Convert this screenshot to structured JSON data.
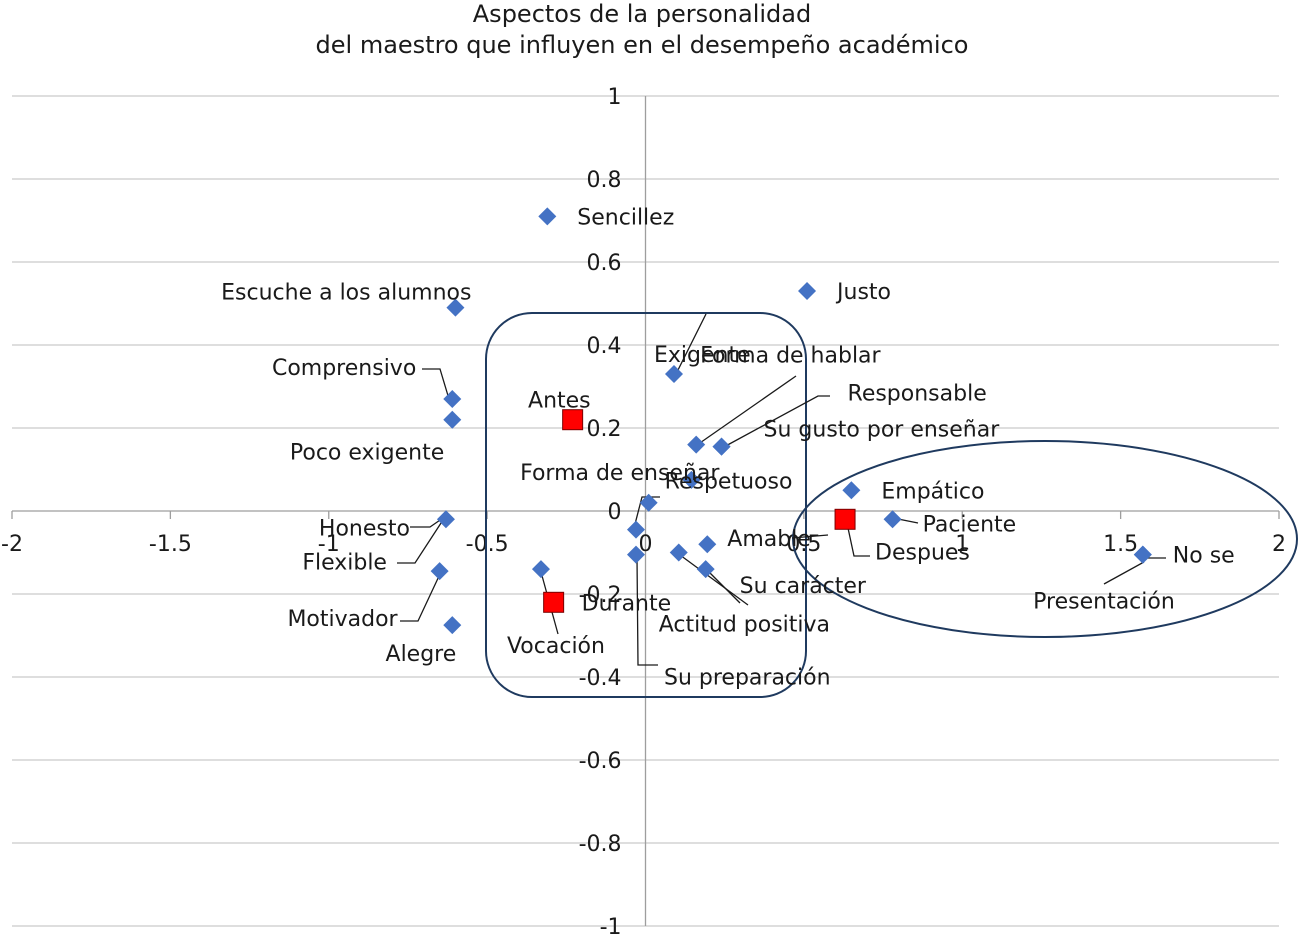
{
  "chart_data": {
    "type": "scatter",
    "title": [
      "Aspectos de la personalidad",
      "del maestro que influyen en el desempeño académico"
    ],
    "xlim": [
      -2,
      2
    ],
    "ylim": [
      -1,
      1
    ],
    "x_ticks": [
      "-2",
      "-1.5",
      "-1",
      "-0.5",
      "0",
      "0.5",
      "1",
      "1.5",
      "2"
    ],
    "y_ticks": [
      "1",
      "0.8",
      "0.6",
      "0.4",
      "0.2",
      "0",
      "-0.2",
      "-0.4",
      "-0.6",
      "-0.8",
      "-1"
    ],
    "grid": true,
    "legend": "none",
    "series": [
      {
        "marker": "diamond",
        "color": "#4472c4",
        "points": [
          {
            "label": "Sencillez",
            "x": -0.31,
            "y": 0.71
          },
          {
            "label": "Escuche a los alumnos",
            "x": -0.6,
            "y": 0.49
          },
          {
            "label": "Justo",
            "x": 0.51,
            "y": 0.53
          },
          {
            "label": "Exigente",
            "x": 0.09,
            "y": 0.33
          },
          {
            "label": "Comprensivo",
            "x": -0.61,
            "y": 0.27
          },
          {
            "label": "Poco exigente",
            "x": -0.61,
            "y": 0.22
          },
          {
            "label": "Forma de hablar",
            "x": 0.16,
            "y": 0.16
          },
          {
            "label": "Responsable",
            "x": 0.24,
            "y": 0.155
          },
          {
            "label": "Forma de enseñar",
            "x": 0.145,
            "y": 0.075
          },
          {
            "label": "Su gusto por enseñar",
            "x": 0.24,
            "y": 0.155
          },
          {
            "label": "Respetuoso",
            "x": 0.01,
            "y": 0.02
          },
          {
            "label": "Empático",
            "x": 0.65,
            "y": 0.05
          },
          {
            "label": "Paciente",
            "x": 0.78,
            "y": -0.02
          },
          {
            "label": "Honesto",
            "x": -0.63,
            "y": -0.02
          },
          {
            "label": "Flexible",
            "x": -0.03,
            "y": -0.045
          },
          {
            "label": "Amable",
            "x": 0.195,
            "y": -0.08
          },
          {
            "label": "Actitud positiva",
            "x": 0.105,
            "y": -0.1
          },
          {
            "label": "Su preparación",
            "x": -0.03,
            "y": -0.105
          },
          {
            "label": "Su carácter",
            "x": 0.19,
            "y": -0.14
          },
          {
            "label": "Vocación",
            "x": -0.33,
            "y": -0.14
          },
          {
            "label": "Motivador",
            "x": -0.65,
            "y": -0.145
          },
          {
            "label": "Alegre",
            "x": -0.61,
            "y": -0.275
          },
          {
            "label": "No se",
            "x": 1.57,
            "y": -0.105
          },
          {
            "label": "Presentación",
            "x": 1.57,
            "y": -0.105
          }
        ]
      },
      {
        "marker": "square",
        "color": "#ff0000",
        "points": [
          {
            "label": "Antes",
            "x": -0.23,
            "y": 0.22
          },
          {
            "label": "Despues",
            "x": 0.63,
            "y": -0.02
          },
          {
            "label": "Durante",
            "x": -0.29,
            "y": -0.22
          }
        ]
      }
    ]
  }
}
